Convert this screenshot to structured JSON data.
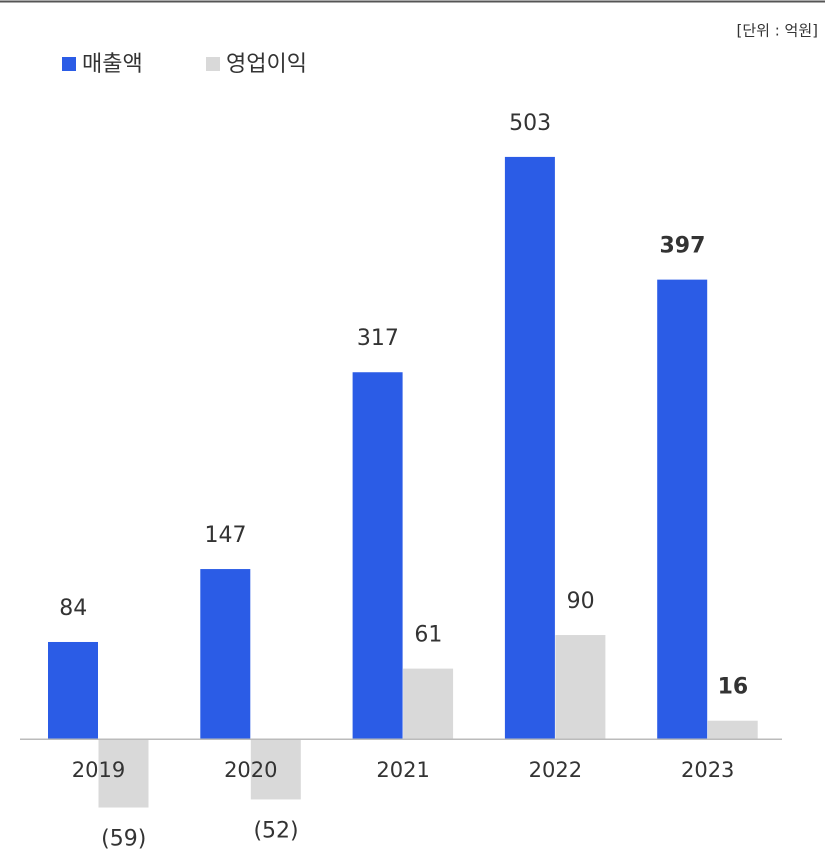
{
  "chart_data": {
    "type": "bar",
    "unit": "[단위 : 억원]",
    "categories": [
      "2019",
      "2020",
      "2021",
      "2022",
      "2023"
    ],
    "series": [
      {
        "name": "매출액",
        "color": "#2b5ce6",
        "values": [
          84,
          147,
          317,
          503,
          397
        ]
      },
      {
        "name": "영업이익",
        "color": "#d9d9d9",
        "values": [
          -59,
          -52,
          61,
          90,
          16
        ],
        "value_labels": [
          "(59)",
          "(52)",
          "61",
          "90",
          "16"
        ]
      }
    ],
    "ylim": [
      -100,
      550
    ],
    "bold_categories": [
      "2023"
    ]
  }
}
